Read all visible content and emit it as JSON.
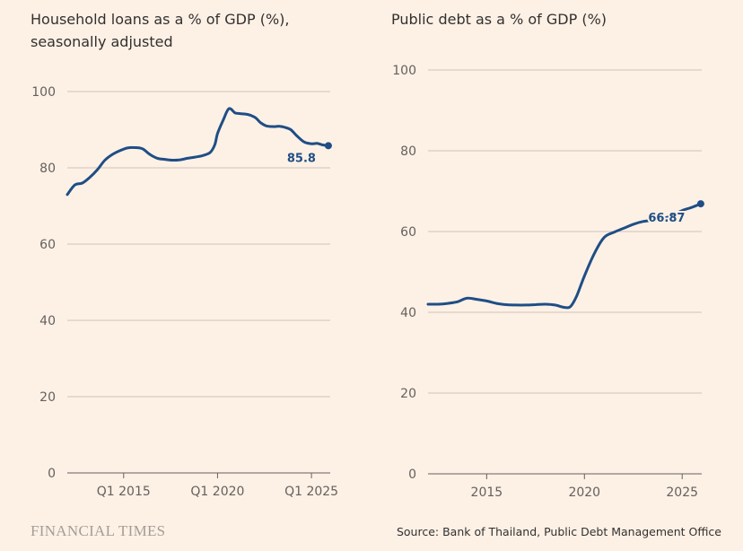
{
  "source": "Source: Bank of Thailand, Public Debt Management Office",
  "logo": "FINANCIAL TIMES",
  "colors": {
    "background": "#fdf1e6",
    "series": "#1f4e85",
    "grid": "#cfc4ba",
    "text": "#33302e"
  },
  "chart_data": [
    {
      "type": "line",
      "title": "Household loans as a % of GDP (%), seasonally adjusted",
      "xlabel": "",
      "ylabel": "",
      "ylim": [
        0,
        100
      ],
      "yticks": [
        0,
        20,
        40,
        60,
        80,
        100
      ],
      "xlim": [
        2012.0,
        2026.0
      ],
      "xticks": [
        {
          "value": 2015.0,
          "label": "Q1 2015"
        },
        {
          "value": 2020.0,
          "label": "Q1 2020"
        },
        {
          "value": 2025.0,
          "label": "Q1 2025"
        }
      ],
      "grid": true,
      "end_label": "85.8",
      "series": [
        {
          "x": [
            2012.0,
            2012.4,
            2012.8,
            2013.2,
            2013.6,
            2014.0,
            2014.4,
            2014.8,
            2015.2,
            2015.6,
            2016.0,
            2016.4,
            2016.8,
            2017.2,
            2017.6,
            2018.0,
            2018.4,
            2018.8,
            2019.2,
            2019.6,
            2019.85,
            2020.0,
            2020.3,
            2020.6,
            2020.9,
            2021.0,
            2021.2,
            2021.6,
            2022.0,
            2022.3,
            2022.6,
            2023.0,
            2023.3,
            2023.6,
            2023.9,
            2024.2,
            2024.6,
            2025.0,
            2025.3,
            2025.6,
            2025.9
          ],
          "y": [
            73.0,
            75.5,
            76.0,
            77.5,
            79.5,
            82.0,
            83.5,
            84.5,
            85.2,
            85.3,
            85.0,
            83.5,
            82.5,
            82.2,
            82.0,
            82.1,
            82.5,
            82.8,
            83.2,
            84.0,
            86.0,
            89.0,
            92.5,
            95.5,
            94.5,
            94.3,
            94.2,
            94.0,
            93.2,
            91.8,
            91.0,
            90.8,
            90.9,
            90.6,
            90.0,
            88.5,
            86.8,
            86.3,
            86.4,
            86.0,
            85.8
          ]
        }
      ]
    },
    {
      "type": "line",
      "title": "Public debt as a % of GDP (%)",
      "xlabel": "",
      "ylabel": "",
      "ylim": [
        0,
        100
      ],
      "yticks": [
        0,
        20,
        40,
        60,
        80,
        100
      ],
      "xlim": [
        2012.0,
        2026.0
      ],
      "xticks": [
        {
          "value": 2015,
          "label": "2015"
        },
        {
          "value": 2020,
          "label": "2020"
        },
        {
          "value": 2025,
          "label": "2025"
        }
      ],
      "grid": true,
      "end_label": "66.87",
      "series": [
        {
          "x": [
            2012.0,
            2012.5,
            2013.0,
            2013.5,
            2014.0,
            2014.5,
            2015.0,
            2015.5,
            2016.0,
            2016.5,
            2017.0,
            2017.5,
            2018.0,
            2018.5,
            2019.0,
            2019.3,
            2019.6,
            2020.0,
            2020.5,
            2021.0,
            2021.5,
            2022.0,
            2022.5,
            2023.0,
            2023.5,
            2024.0,
            2024.5,
            2025.0,
            2025.5,
            2025.95
          ],
          "y": [
            42.0,
            42.0,
            42.2,
            42.6,
            43.5,
            43.2,
            42.8,
            42.2,
            41.9,
            41.8,
            41.8,
            41.9,
            42.0,
            41.8,
            41.2,
            41.5,
            44.0,
            49.0,
            54.5,
            58.5,
            59.8,
            60.8,
            61.8,
            62.5,
            62.8,
            63.2,
            64.0,
            65.2,
            66.0,
            66.87
          ]
        }
      ]
    }
  ]
}
